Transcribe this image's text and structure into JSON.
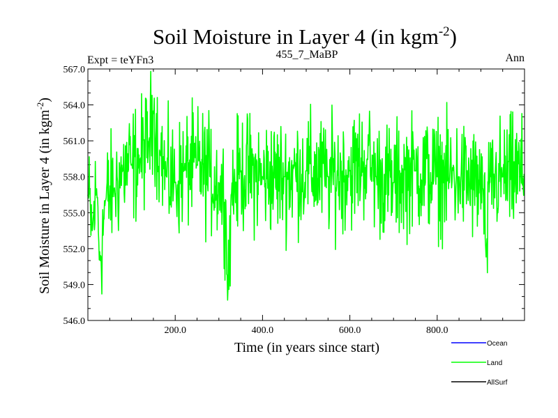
{
  "chart_data": {
    "type": "line",
    "title_main": "Soil Moisture in Layer 4 (in kgm",
    "title_sup": "-2",
    "title_close": ")",
    "subtitle_left": "Expt = teYFn3",
    "subtitle_center": "455_7_MaBP",
    "subtitle_right": "Ann",
    "xlabel": "Time (in years since start)",
    "ylabel_main": "Soil Moisture in Layer 4 (in kgm",
    "ylabel_sup": "-2",
    "ylabel_close": ")",
    "xlim": [
      0,
      1000
    ],
    "ylim": [
      546.0,
      567.0
    ],
    "x_major_ticks": [
      200,
      400,
      600,
      800
    ],
    "x_tick_labels": [
      "200.0",
      "400.0",
      "600.0",
      "800.0"
    ],
    "y_major_ticks": [
      546,
      549,
      552,
      555,
      558,
      561,
      564,
      567
    ],
    "y_tick_labels": [
      "546.0",
      "549.0",
      "552.0",
      "555.0",
      "558.0",
      "561.0",
      "564.0",
      "567.0"
    ],
    "legend_placement": "bottom-right, below plot",
    "series": [
      {
        "name": "Ocean",
        "color": "#0000ff",
        "values": []
      },
      {
        "name": "Land",
        "color": "#00ff00",
        "anchors": [
          [
            0,
            556.5
          ],
          [
            10,
            553.5
          ],
          [
            20,
            557
          ],
          [
            28,
            551
          ],
          [
            40,
            556
          ],
          [
            60,
            557
          ],
          [
            80,
            558.5
          ],
          [
            100,
            559
          ],
          [
            120,
            559.5
          ],
          [
            140,
            561
          ],
          [
            150,
            563.5
          ],
          [
            165,
            560
          ],
          [
            180,
            558
          ],
          [
            200,
            557.5
          ],
          [
            220,
            558.5
          ],
          [
            250,
            559
          ],
          [
            280,
            558
          ],
          [
            300,
            557.5
          ],
          [
            316,
            556
          ],
          [
            320,
            547.7
          ],
          [
            328,
            556.5
          ],
          [
            350,
            558.5
          ],
          [
            400,
            558
          ],
          [
            450,
            558
          ],
          [
            500,
            558.5
          ],
          [
            550,
            558
          ],
          [
            600,
            558.5
          ],
          [
            640,
            559.5
          ],
          [
            660,
            558
          ],
          [
            700,
            557.5
          ],
          [
            750,
            558.5
          ],
          [
            800,
            558
          ],
          [
            850,
            558
          ],
          [
            905,
            557
          ],
          [
            912,
            551.3
          ],
          [
            920,
            557.5
          ],
          [
            950,
            558
          ],
          [
            1000,
            558.2
          ]
        ],
        "noise_amplitude": 2.4
      },
      {
        "name": "AllSurf",
        "color": "#000000",
        "values": []
      }
    ]
  }
}
